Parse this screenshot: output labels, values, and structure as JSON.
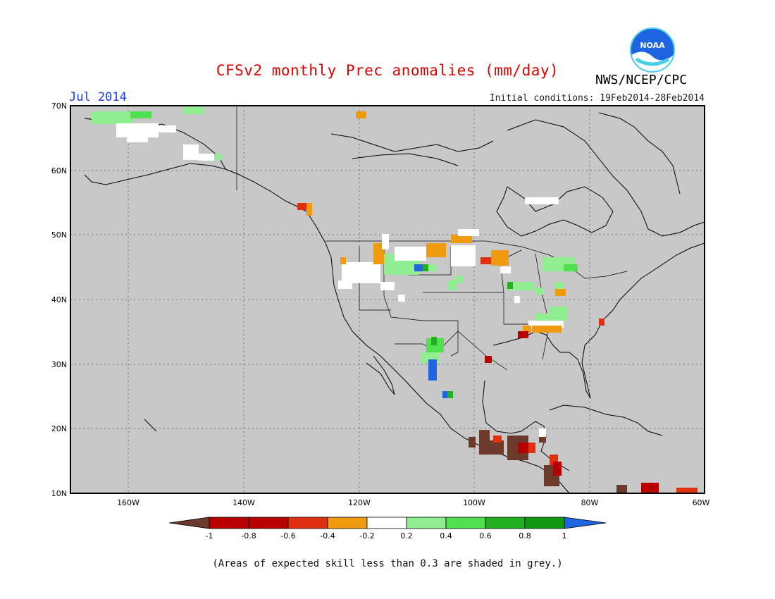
{
  "header": {
    "title": "CFSv2 monthly Prec anomalies (mm/day)",
    "agency": "NWS/NCEP/CPC",
    "logo_text": "NOAA",
    "month": "Jul 2014",
    "initial_conditions": "Initial conditions: 19Feb2014-28Feb2014"
  },
  "map": {
    "lon_range": [
      -170,
      -60
    ],
    "lat_range": [
      10,
      70
    ],
    "lat_labels": [
      "70N",
      "60N",
      "50N",
      "40N",
      "30N",
      "20N",
      "10N"
    ],
    "lon_labels": [
      "160W",
      "140W",
      "120W",
      "100W",
      "80W",
      "60W"
    ],
    "background_color": "#c8c8c8"
  },
  "legend": {
    "labels": [
      "-1",
      "-0.8",
      "-0.6",
      "-0.4",
      "-0.2",
      "0.2",
      "0.4",
      "0.6",
      "0.8",
      "1"
    ],
    "colors": [
      "#6b3a2a",
      "#b80000",
      "#e03010",
      "#f09a10",
      "#ffffff",
      "#90ee90",
      "#50e050",
      "#20b020",
      "#109810",
      "#1f64e0"
    ]
  },
  "footnote": "(Areas of expected skill less than 0.3 are shaded in grey.)",
  "colors": {
    "title": "#e00000",
    "month": "#1a3de0"
  }
}
